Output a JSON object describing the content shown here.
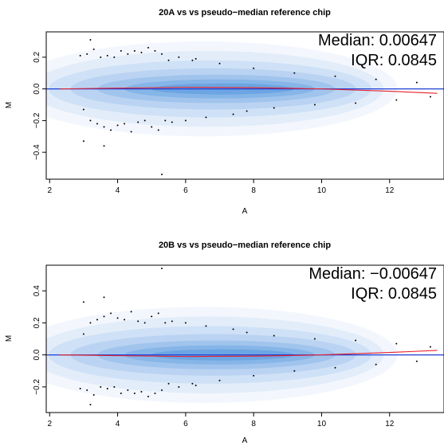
{
  "chart_data": [
    {
      "type": "scatter",
      "title": "20A vs vs pseudo−median reference chip",
      "xlabel": "A",
      "ylabel": "M",
      "xlim": [
        1.9,
        13.6
      ],
      "ylim": [
        -0.57,
        0.36
      ],
      "xticks": [
        2,
        4,
        6,
        8,
        10,
        12
      ],
      "yticks": [
        -0.4,
        -0.2,
        0.0,
        0.2
      ],
      "ytick_labels": [
        "−0.4",
        "−0.2",
        "0.0",
        "0.2"
      ],
      "median_label": "Median: 0.00647",
      "iqr_label": "IQR: 0.0845",
      "reference_line": {
        "y": 0,
        "color": "#1f3fd6"
      },
      "loess_trend": {
        "color": "#e8202a",
        "x": [
          2.3,
          4,
          6,
          8,
          10,
          12,
          13.4
        ],
        "y": [
          0.0,
          0.005,
          0.01,
          0.008,
          0.0,
          -0.015,
          -0.028
        ]
      },
      "density": {
        "color": "#2b7fd8",
        "x_peak": 7.0,
        "y_center": 0.0
      },
      "outlier_points": [
        [
          2.9,
          0.21
        ],
        [
          3.0,
          -0.13
        ],
        [
          3.1,
          0.22
        ],
        [
          3.2,
          -0.2
        ],
        [
          3.3,
          0.25
        ],
        [
          3.4,
          -0.22
        ],
        [
          3.5,
          0.2
        ],
        [
          3.6,
          -0.24
        ],
        [
          3.7,
          0.21
        ],
        [
          3.8,
          -0.26
        ],
        [
          3.9,
          0.2
        ],
        [
          4.0,
          -0.23
        ],
        [
          4.1,
          0.24
        ],
        [
          4.2,
          -0.22
        ],
        [
          4.3,
          0.22
        ],
        [
          4.4,
          -0.27
        ],
        [
          4.5,
          0.24
        ],
        [
          4.6,
          -0.21
        ],
        [
          4.7,
          0.23
        ],
        [
          4.8,
          -0.2
        ],
        [
          4.9,
          0.26
        ],
        [
          5.0,
          -0.24
        ],
        [
          5.1,
          0.24
        ],
        [
          5.2,
          -0.26
        ],
        [
          5.3,
          0.22
        ],
        [
          5.4,
          -0.2
        ],
        [
          5.5,
          0.18
        ],
        [
          5.6,
          -0.21
        ],
        [
          5.8,
          0.2
        ],
        [
          6.0,
          -0.2
        ],
        [
          6.3,
          0.19
        ],
        [
          6.6,
          -0.18
        ],
        [
          7.0,
          0.16
        ],
        [
          7.4,
          -0.16
        ],
        [
          8.0,
          0.13
        ],
        [
          8.6,
          -0.12
        ],
        [
          9.2,
          0.1
        ],
        [
          9.8,
          -0.1
        ],
        [
          10.4,
          0.08
        ],
        [
          11.0,
          -0.09
        ],
        [
          11.6,
          0.06
        ],
        [
          12.2,
          -0.07
        ],
        [
          12.8,
          0.04
        ],
        [
          13.2,
          -0.05
        ],
        [
          3.2,
          0.31
        ],
        [
          5.3,
          -0.54
        ],
        [
          3.6,
          -0.36
        ],
        [
          3.0,
          -0.33
        ],
        [
          6.2,
          0.18
        ],
        [
          7.8,
          -0.14
        ]
      ]
    },
    {
      "type": "scatter",
      "title": "20B vs vs pseudo−median reference chip",
      "xlabel": "A",
      "ylabel": "M",
      "xlim": [
        1.9,
        13.6
      ],
      "ylim": [
        -0.36,
        0.56
      ],
      "xticks": [
        2,
        4,
        6,
        8,
        10,
        12
      ],
      "yticks": [
        -0.2,
        0.0,
        0.2,
        0.4
      ],
      "ytick_labels": [
        "−0.2",
        "0.0",
        "0.2",
        "0.4"
      ],
      "median_label": "Median: −0.00647",
      "iqr_label": "IQR: 0.0845",
      "reference_line": {
        "y": 0,
        "color": "#1f3fd6"
      },
      "loess_trend": {
        "color": "#e8202a",
        "x": [
          2.3,
          4,
          6,
          8,
          10,
          12,
          13.4
        ],
        "y": [
          0.0,
          -0.005,
          -0.01,
          -0.008,
          0.0,
          0.015,
          0.028
        ]
      },
      "density": {
        "color": "#2b7fd8",
        "x_peak": 7.0,
        "y_center": 0.0
      },
      "outlier_points": [
        [
          2.9,
          -0.21
        ],
        [
          3.0,
          0.13
        ],
        [
          3.1,
          -0.22
        ],
        [
          3.2,
          0.2
        ],
        [
          3.3,
          -0.25
        ],
        [
          3.4,
          0.22
        ],
        [
          3.5,
          -0.2
        ],
        [
          3.6,
          0.24
        ],
        [
          3.7,
          -0.21
        ],
        [
          3.8,
          0.26
        ],
        [
          3.9,
          -0.2
        ],
        [
          4.0,
          0.23
        ],
        [
          4.1,
          -0.24
        ],
        [
          4.2,
          0.22
        ],
        [
          4.3,
          -0.22
        ],
        [
          4.4,
          0.27
        ],
        [
          4.5,
          -0.24
        ],
        [
          4.6,
          0.21
        ],
        [
          4.7,
          -0.23
        ],
        [
          4.8,
          0.2
        ],
        [
          4.9,
          -0.26
        ],
        [
          5.0,
          0.24
        ],
        [
          5.1,
          -0.24
        ],
        [
          5.2,
          0.26
        ],
        [
          5.3,
          -0.22
        ],
        [
          5.4,
          0.2
        ],
        [
          5.5,
          -0.18
        ],
        [
          5.6,
          0.21
        ],
        [
          5.8,
          -0.2
        ],
        [
          6.0,
          0.2
        ],
        [
          6.3,
          -0.19
        ],
        [
          6.6,
          0.18
        ],
        [
          7.0,
          -0.16
        ],
        [
          7.4,
          0.16
        ],
        [
          8.0,
          -0.13
        ],
        [
          8.6,
          0.12
        ],
        [
          9.2,
          -0.1
        ],
        [
          9.8,
          0.1
        ],
        [
          10.4,
          -0.08
        ],
        [
          11.0,
          0.09
        ],
        [
          11.6,
          -0.06
        ],
        [
          12.2,
          0.07
        ],
        [
          12.8,
          -0.04
        ],
        [
          13.2,
          0.05
        ],
        [
          3.2,
          -0.31
        ],
        [
          5.3,
          0.54
        ],
        [
          3.6,
          0.36
        ],
        [
          3.0,
          0.33
        ],
        [
          6.2,
          -0.18
        ],
        [
          7.8,
          0.14
        ]
      ]
    }
  ]
}
